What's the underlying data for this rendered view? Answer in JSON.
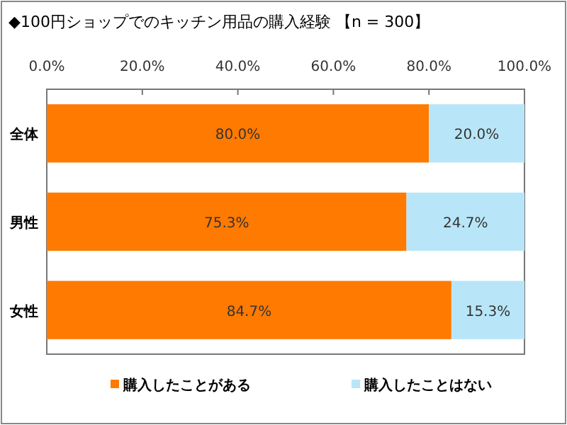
{
  "chart_data": {
    "type": "bar",
    "orientation": "horizontal",
    "stacked": true,
    "title": "◆100円ショップでのキッチン用品の購入経験 【n = 300】",
    "categories": [
      "全体",
      "男性",
      "女性"
    ],
    "series": [
      {
        "name": "購入したことがある",
        "color": "#ff7a00",
        "values": [
          80.0,
          75.3,
          84.7
        ],
        "value_labels": [
          "80.0%",
          "75.3%",
          "84.7%"
        ]
      },
      {
        "name": "購入したことはない",
        "color": "#b8e6f8",
        "values": [
          20.0,
          24.7,
          15.3
        ],
        "value_labels": [
          "20.0%",
          "24.7%",
          "15.3%"
        ]
      }
    ],
    "xlim": [
      0,
      100
    ],
    "xticks": [
      {
        "value": 0,
        "label": "0.0%"
      },
      {
        "value": 20,
        "label": "20.0%"
      },
      {
        "value": 40,
        "label": "40.0%"
      },
      {
        "value": 60,
        "label": "60.0%"
      },
      {
        "value": 80,
        "label": "80.0%"
      },
      {
        "value": 100,
        "label": "100.0%"
      }
    ],
    "grid": false,
    "legend": "bottom"
  }
}
